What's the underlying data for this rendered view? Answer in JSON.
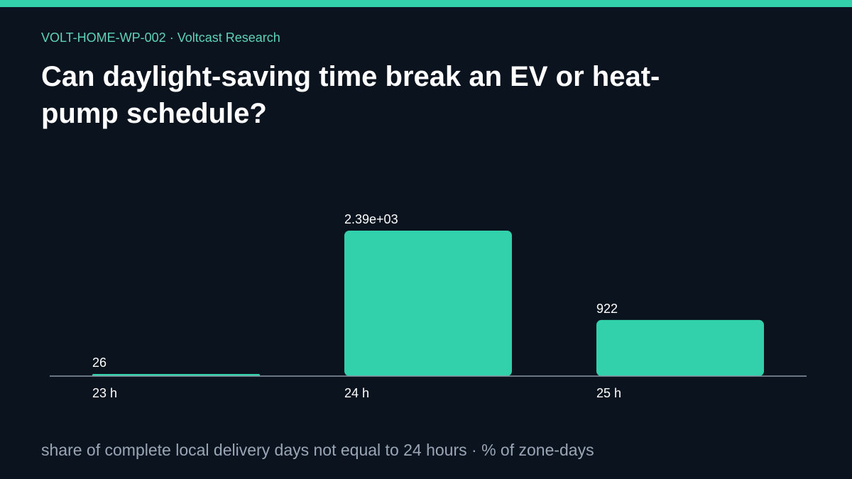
{
  "header": {
    "kicker": "VOLT-HOME-WP-002 · Voltcast Research",
    "title": "Can daylight-saving time break an EV or heat-pump schedule?"
  },
  "footer": {
    "note": "share of complete local delivery days not equal to 24 hours · % of zone-days"
  },
  "colors": {
    "accent": "#32d0ab",
    "background": "#0b131e",
    "axis": "#8a97a8",
    "text": "#ffffff",
    "muted": "#9aa6b6"
  },
  "chart_data": {
    "type": "bar",
    "title": "Can daylight-saving time break an EV or heat-pump schedule?",
    "categories": [
      "23 h",
      "24 h",
      "25 h"
    ],
    "values": [
      26,
      2390,
      922
    ],
    "value_labels": [
      "26",
      "2.39e+03",
      "922"
    ],
    "ylim": [
      0,
      2390
    ],
    "grid": false,
    "legend": "none"
  }
}
